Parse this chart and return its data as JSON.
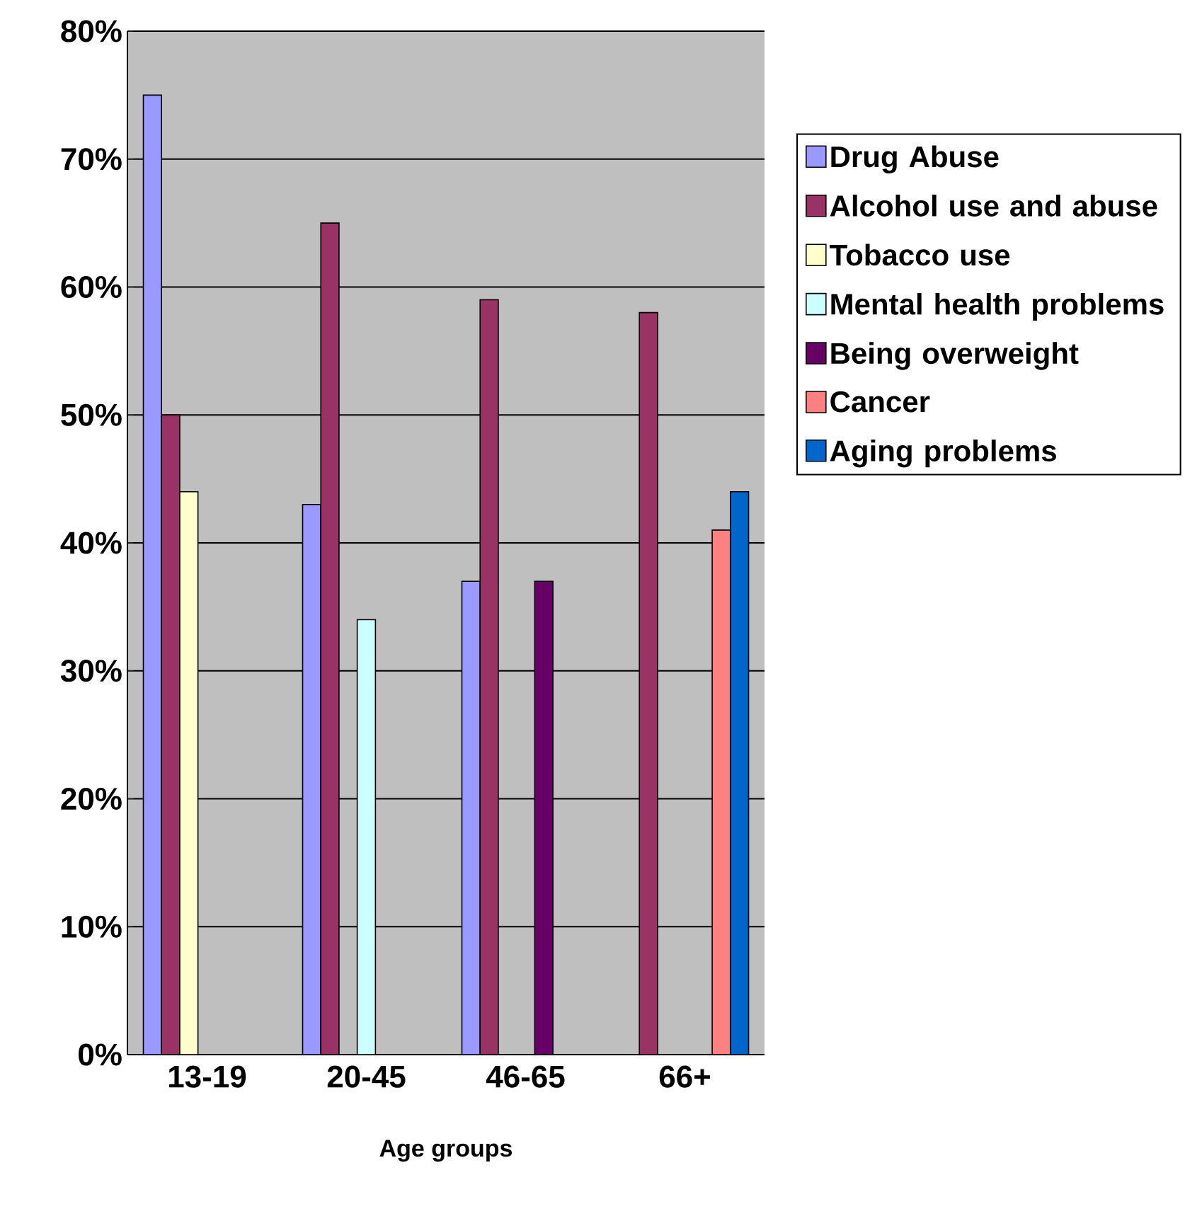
{
  "chart_data": {
    "type": "bar",
    "xlabel": "Age groups",
    "categories": [
      "13-19",
      "20-45",
      "46-65",
      "66+"
    ],
    "series": [
      {
        "name": "Drug Abuse",
        "color": "#9999ff",
        "values": [
          75,
          43,
          37,
          null
        ]
      },
      {
        "name": "Alcohol use and abuse",
        "color": "#993366",
        "values": [
          50,
          65,
          59,
          58
        ]
      },
      {
        "name": "Tobacco use",
        "color": "#ffffcc",
        "values": [
          44,
          null,
          null,
          null
        ]
      },
      {
        "name": "Mental health problems",
        "color": "#ccffff",
        "values": [
          null,
          34,
          null,
          null
        ]
      },
      {
        "name": "Being overweight",
        "color": "#660066",
        "values": [
          null,
          null,
          37,
          null
        ]
      },
      {
        "name": "Cancer",
        "color": "#ff8080",
        "values": [
          null,
          null,
          null,
          41
        ]
      },
      {
        "name": "Aging problems",
        "color": "#0066cc",
        "values": [
          null,
          null,
          null,
          44
        ]
      }
    ],
    "ylim": [
      0,
      80
    ],
    "yticks": [
      {
        "value": 0,
        "label": "0%"
      },
      {
        "value": 10,
        "label": "10%"
      },
      {
        "value": 20,
        "label": "20%"
      },
      {
        "value": 30,
        "label": "30%"
      },
      {
        "value": 40,
        "label": "40%"
      },
      {
        "value": 50,
        "label": "50%"
      },
      {
        "value": 60,
        "label": "60%"
      },
      {
        "value": 70,
        "label": "70%"
      },
      {
        "value": 80,
        "label": "80%"
      }
    ],
    "grid": "y",
    "legend": "right"
  }
}
